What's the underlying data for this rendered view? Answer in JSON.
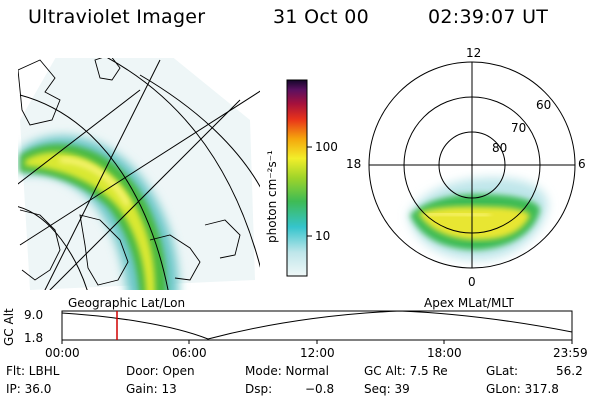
{
  "header": {
    "instrument": "Ultraviolet Imager",
    "date": "31 Oct 00",
    "time": "02:39:07 UT"
  },
  "colorbar": {
    "label": "photon cm⁻²s⁻¹",
    "ticks": [
      "100",
      "10"
    ]
  },
  "panels": {
    "left_caption": "Geographic Lat/Lon",
    "right_caption": "Apex MLat/MLT"
  },
  "polar": {
    "mlt_labels": [
      "12",
      "18",
      "6",
      "0"
    ],
    "lat_labels": [
      "60",
      "70",
      "80"
    ]
  },
  "timeline": {
    "axis_label": "GC Alt",
    "y_ticks": [
      "9.0",
      "1.8"
    ],
    "x_ticks": [
      "00:00",
      "06:00",
      "12:00",
      "18:00",
      "23:59"
    ],
    "marker_color": "#d00000",
    "marker_time": "02:39"
  },
  "status": {
    "flt": "Flt: LBHL",
    "ip": "IP: 36.0",
    "door": "Door: Open",
    "gain": "Gain: 13",
    "mode": "Mode: Normal",
    "dsp": "Dsp:",
    "dsp_val": "−0.8",
    "gc_alt": "GC Alt: 7.5 Re",
    "seq": "Seq: 39",
    "glat": "GLat:",
    "glat_val": "56.2",
    "glon": "GLon: 317.8"
  }
}
